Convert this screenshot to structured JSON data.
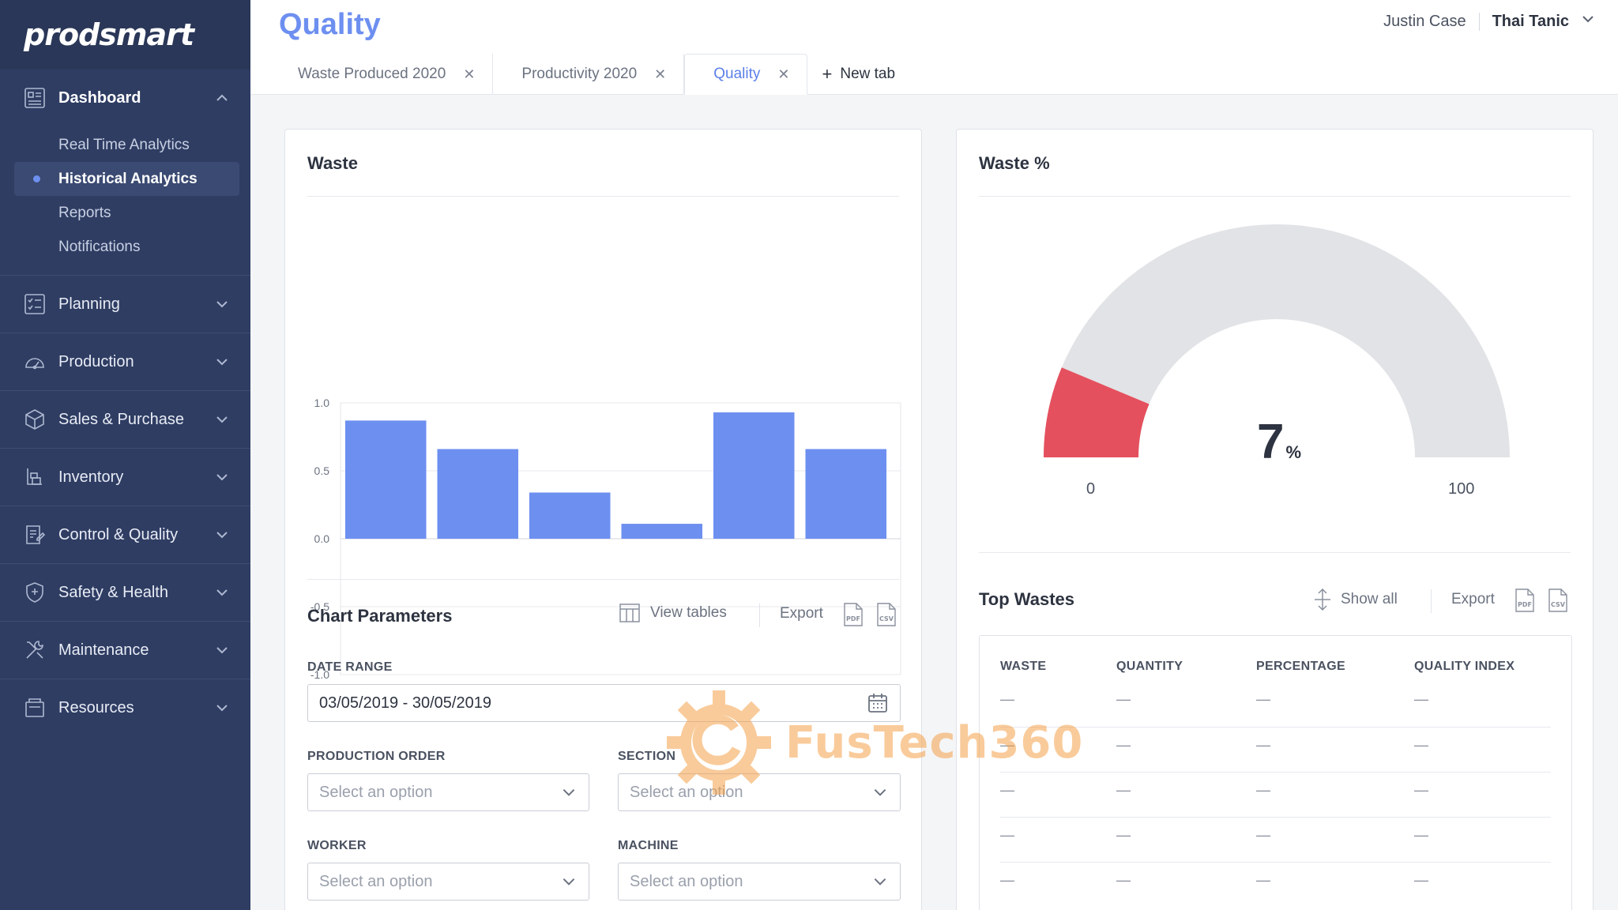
{
  "app": {
    "logo": "prodsmart"
  },
  "sidebar": {
    "dashboard": {
      "label": "Dashboard",
      "items": [
        {
          "label": "Real Time Analytics"
        },
        {
          "label": "Historical Analytics"
        },
        {
          "label": "Reports"
        },
        {
          "label": "Notifications"
        }
      ]
    },
    "groups": [
      {
        "label": "Planning",
        "icon": "planning-icon"
      },
      {
        "label": "Production",
        "icon": "gauge-icon"
      },
      {
        "label": "Sales & Purchase",
        "icon": "box-icon"
      },
      {
        "label": "Inventory",
        "icon": "inventory-icon"
      },
      {
        "label": "Control & Quality",
        "icon": "quality-icon"
      },
      {
        "label": "Safety & Health",
        "icon": "shield-icon"
      },
      {
        "label": "Maintenance",
        "icon": "tools-icon"
      },
      {
        "label": "Resources",
        "icon": "resources-icon"
      }
    ]
  },
  "header": {
    "title": "Quality",
    "user_name": "Justin Case",
    "company": "Thai Tanic",
    "tabs": [
      {
        "label": "Waste Produced 2020"
      },
      {
        "label": "Productivity 2020"
      },
      {
        "label": "Quality"
      }
    ],
    "new_tab_label": "New tab"
  },
  "waste_card": {
    "title": "Waste",
    "chart_params_title": "Chart Parameters",
    "view_tables_label": "View tables",
    "export_label": "Export",
    "pdf_label": "PDF",
    "csv_label": "CSV",
    "date_range_label": "DATE RANGE",
    "date_range_value": "03/05/2019 - 30/05/2019",
    "production_order_label": "PRODUCTION ORDER",
    "section_label": "SECTION",
    "worker_label": "WORKER",
    "machine_label": "MACHINE",
    "select_placeholder": "Select an option"
  },
  "chart_data": {
    "type": "bar",
    "categories": [
      "",
      "",
      "",
      "",
      "",
      ""
    ],
    "values": [
      0.87,
      0.66,
      0.34,
      0.11,
      0.93,
      0.66
    ],
    "ylim": [
      -1.0,
      1.0
    ],
    "yticks": [
      "1.0",
      "0.5",
      "0.0",
      "-0.5",
      "-1.0"
    ],
    "bar_color": "#6d8ff0",
    "grid": true,
    "title": "",
    "xlabel": "",
    "ylabel": ""
  },
  "waste_pct_card": {
    "title": "Waste %",
    "gauge_value": "7",
    "gauge_fraction": 0.07,
    "gauge_unit": "%",
    "gauge_min": "0",
    "gauge_max": "100",
    "gauge_fill_color": "#e5505e",
    "gauge_track_color": "#e2e3e6"
  },
  "top_wastes": {
    "title": "Top Wastes",
    "show_all_label": "Show all",
    "export_label": "Export",
    "columns": [
      "WASTE",
      "QUANTITY",
      "PERCENTAGE",
      "QUALITY INDEX"
    ],
    "rows": [
      [
        "—",
        "—",
        "—",
        "—"
      ],
      [
        "—",
        "—",
        "—",
        "—"
      ],
      [
        "—",
        "—",
        "—",
        "—"
      ],
      [
        "—",
        "—",
        "—",
        "—"
      ],
      [
        "—",
        "—",
        "—",
        "—"
      ]
    ]
  },
  "watermark": {
    "text": "FusTech360"
  }
}
